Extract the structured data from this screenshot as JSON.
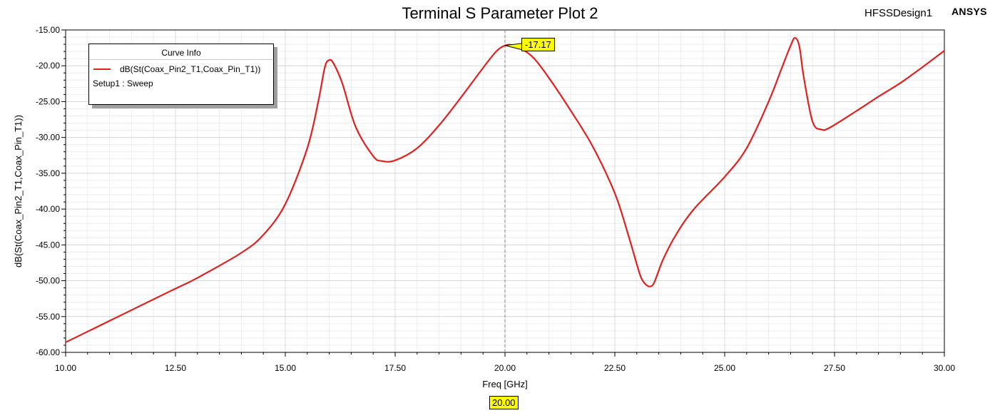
{
  "header": {
    "title": "Terminal S Parameter Plot 2",
    "design_name": "HFSSDesign1",
    "brand": "ANSYS"
  },
  "legend": {
    "title": "Curve Info",
    "series_name": "dB(St(Coax_Pin2_T1,Coax_Pin_T1))",
    "setup": "Setup1 : Sweep"
  },
  "marker": {
    "x_label": "20.00",
    "y_label": "-17.17"
  },
  "colors": {
    "curve": "#e02020",
    "grid": "#d8d8d8",
    "marker_bg": "#ffff00"
  },
  "chart_data": {
    "type": "line",
    "title": "Terminal S Parameter Plot 2",
    "xlabel": "Freq [GHz]",
    "ylabel": "dB(St(Coax_Pin2_T1,Coax_Pin_T1))",
    "xlim": [
      10,
      30
    ],
    "ylim": [
      -60,
      -15
    ],
    "x_ticks": [
      "10.00",
      "12.50",
      "15.00",
      "17.50",
      "20.00",
      "22.50",
      "25.00",
      "27.50",
      "30.00"
    ],
    "y_ticks": [
      "-15.00",
      "-20.00",
      "-25.00",
      "-30.00",
      "-35.00",
      "-40.00",
      "-45.00",
      "-50.00",
      "-55.00",
      "-60.00"
    ],
    "grid": true,
    "legend_position": "top-left",
    "series": [
      {
        "name": "dB(St(Coax_Pin2_T1,Coax_Pin_T1))",
        "x": [
          10.0,
          11.0,
          12.0,
          12.5,
          13.0,
          14.0,
          14.5,
          15.0,
          15.5,
          15.75,
          15.9,
          16.0,
          16.1,
          16.3,
          16.6,
          17.0,
          17.2,
          17.5,
          18.0,
          18.5,
          19.0,
          19.5,
          19.8,
          20.0,
          20.2,
          20.6,
          21.0,
          21.5,
          22.0,
          22.5,
          22.8,
          23.0,
          23.1,
          23.2,
          23.3,
          23.4,
          23.6,
          23.9,
          24.3,
          25.0,
          25.5,
          26.0,
          26.3,
          26.5,
          26.6,
          26.7,
          26.8,
          27.0,
          27.2,
          27.4,
          28.0,
          28.5,
          29.0,
          29.5,
          30.0
        ],
        "y": [
          -58.6,
          -55.6,
          -52.6,
          -51.1,
          -49.6,
          -46.1,
          -43.6,
          -39.3,
          -31.5,
          -25.0,
          -20.2,
          -19.2,
          -19.7,
          -22.5,
          -28.5,
          -32.6,
          -33.3,
          -33.2,
          -31.5,
          -28.3,
          -24.4,
          -20.3,
          -18.0,
          -17.17,
          -17.2,
          -18.6,
          -21.7,
          -26.3,
          -31.3,
          -37.8,
          -43.5,
          -47.7,
          -49.6,
          -50.5,
          -50.8,
          -50.2,
          -47.0,
          -43.5,
          -40.0,
          -35.5,
          -31.5,
          -25.0,
          -20.3,
          -17.2,
          -16.1,
          -17.3,
          -21.6,
          -27.8,
          -28.9,
          -28.6,
          -26.3,
          -24.3,
          -22.4,
          -20.2,
          -17.9
        ]
      }
    ]
  }
}
